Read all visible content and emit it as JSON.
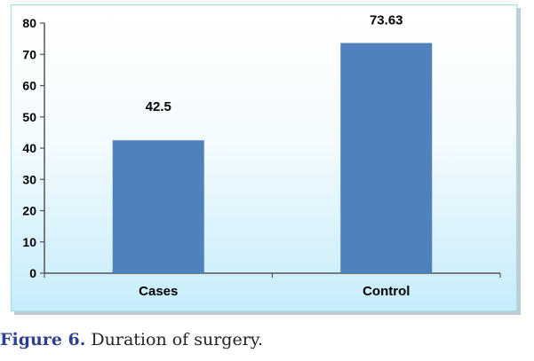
{
  "chart_data": {
    "type": "bar",
    "categories": [
      "Cases",
      "Control"
    ],
    "values": [
      42.5,
      73.63
    ],
    "data_labels": [
      "42.5",
      "73.63"
    ],
    "ylim": [
      0,
      80
    ],
    "yticks": [
      "0",
      "10",
      "20",
      "30",
      "40",
      "50",
      "60",
      "70",
      "80"
    ],
    "title": "",
    "xlabel": "",
    "ylabel": "",
    "bar_color": "#4f81bd",
    "grid": false,
    "legend": false
  },
  "caption": {
    "figure_label": "Figure 6.",
    "text": "Duration of surgery."
  }
}
